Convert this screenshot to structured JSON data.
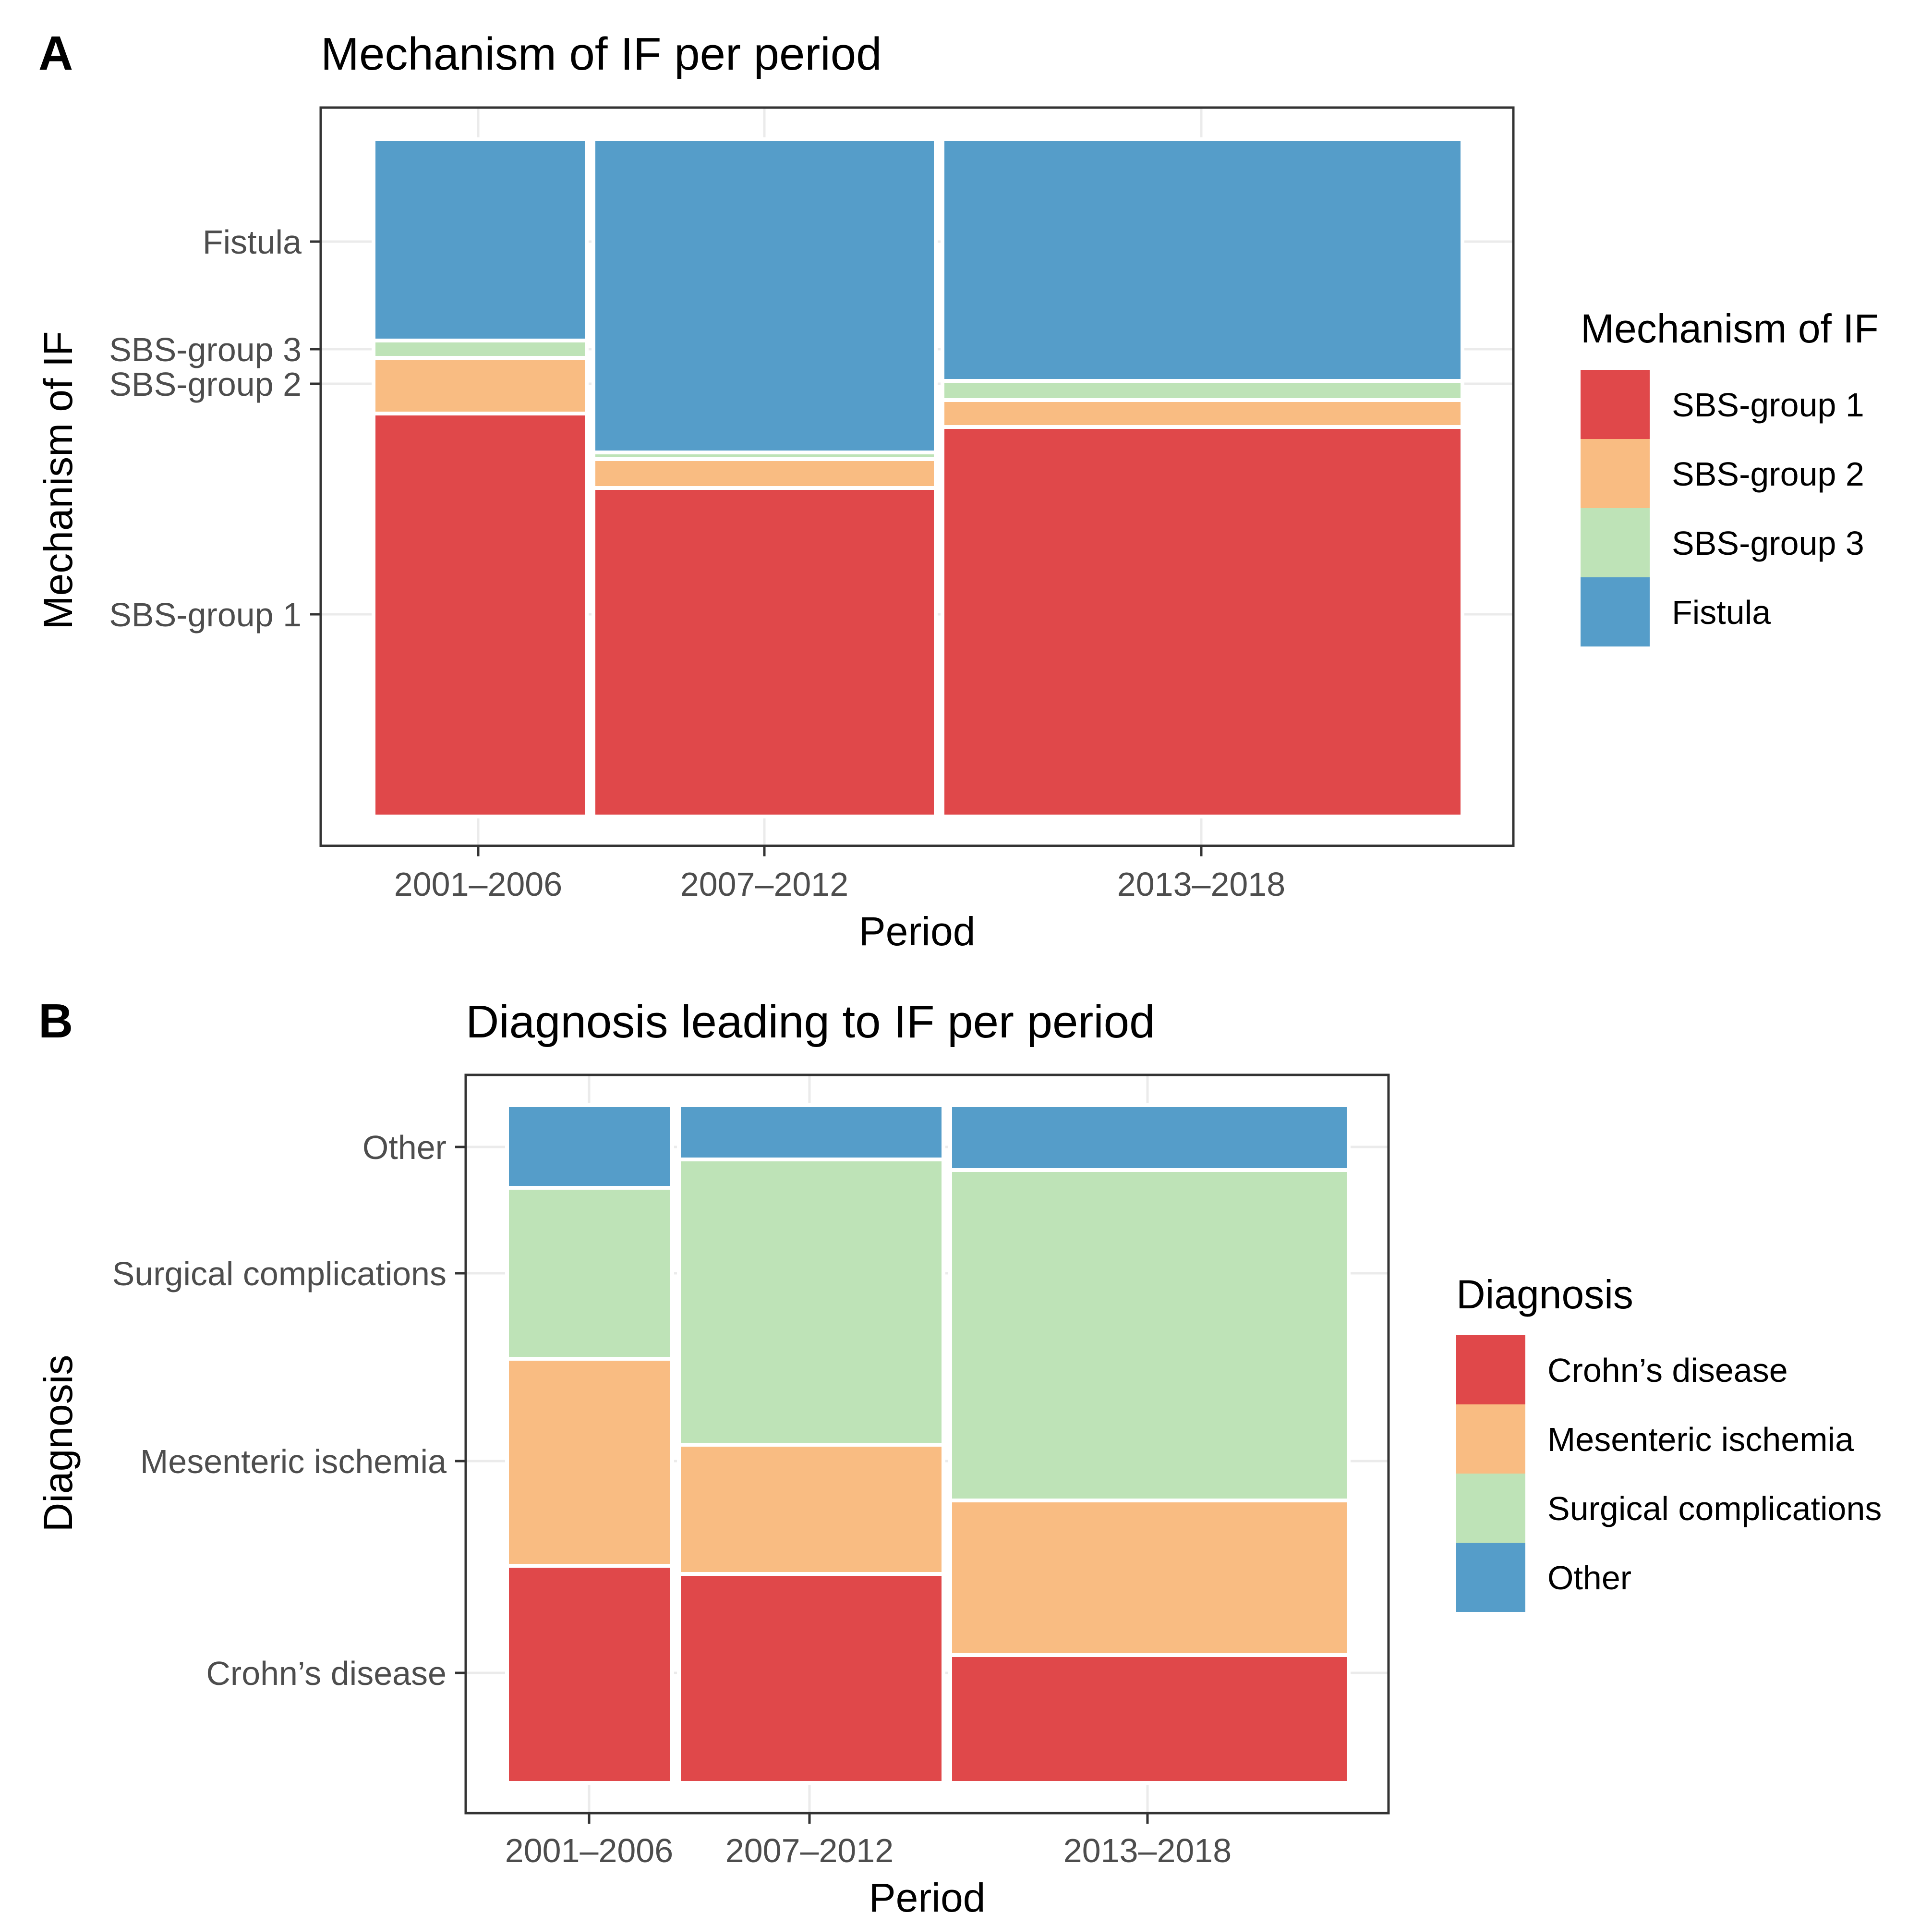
{
  "figure": {
    "panels": [
      {
        "panel_label": "A",
        "colors": [
          "#E0484A",
          "#F9BC82",
          "#BEE3B7",
          "#559DC9"
        ]
      },
      {
        "panel_label": "B",
        "colors": [
          "#E0484A",
          "#F9BC82",
          "#BEE3B7",
          "#559DC9"
        ]
      }
    ]
  },
  "chart_data": [
    {
      "type": "mosaic",
      "title": "Mechanism of IF per period",
      "xlabel": "Period",
      "ylabel": "Mechanism of IF",
      "legend_title": "Mechanism of IF",
      "legend_position": "right",
      "categories": [
        "2001–2006",
        "2007–2012",
        "2013–2018"
      ],
      "column_widths": [
        0.2,
        0.32,
        0.48
      ],
      "series": [
        {
          "name": "SBS-group 1",
          "values": [
            0.59,
            0.48,
            0.57
          ]
        },
        {
          "name": "SBS-group 2",
          "values": [
            0.08,
            0.04,
            0.035
          ]
        },
        {
          "name": "SBS-group 3",
          "values": [
            0.02,
            0.006,
            0.025
          ]
        },
        {
          "name": "Fistula",
          "values": [
            0.3,
            0.46,
            0.36
          ]
        }
      ],
      "y_tick_labels": [
        "SBS-group 1",
        "SBS-group 2",
        "SBS-group 3",
        "Fistula"
      ],
      "grid": true
    },
    {
      "type": "mosaic",
      "title": "Diagnosis leading to IF per period",
      "xlabel": "Period",
      "ylabel": "Diagnosis",
      "legend_title": "Diagnosis",
      "legend_position": "right",
      "categories": [
        "2001–2006",
        "2007–2012",
        "2013–2018"
      ],
      "column_widths": [
        0.2,
        0.32,
        0.48
      ],
      "series": [
        {
          "name": "Crohn’s disease",
          "values": [
            0.32,
            0.31,
            0.19
          ]
        },
        {
          "name": "Mesenteric ischemia",
          "values": [
            0.3,
            0.19,
            0.23
          ]
        },
        {
          "name": "Surgical complications",
          "values": [
            0.25,
            0.42,
            0.49
          ]
        },
        {
          "name": "Other",
          "values": [
            0.12,
            0.08,
            0.09
          ]
        }
      ],
      "y_tick_labels": [
        "Crohn’s disease",
        "Mesenteric ischemia",
        "Surgical complications",
        "Other"
      ],
      "grid": true
    }
  ]
}
